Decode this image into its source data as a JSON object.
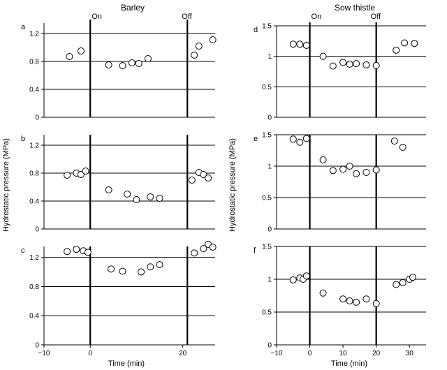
{
  "figure": {
    "column_titles": [
      "Barley",
      "Sow thistle"
    ],
    "ylabel": "Hydrostatic pressure (MPa)",
    "xlabel": "Time (min)",
    "marker_on": "On",
    "marker_off": "Off"
  },
  "chart_data": [
    {
      "type": "scatter",
      "panel": "a",
      "column": "Barley",
      "xlim": [
        -10,
        27
      ],
      "ylim": [
        0,
        1.35
      ],
      "yticks": [
        0,
        0.4,
        0.8,
        1.2
      ],
      "ytick_labels": [
        "0",
        "0.4",
        "0.8",
        "1.2"
      ],
      "hlines": [
        0.4,
        0.8,
        1.2
      ],
      "vlines": [
        0,
        21
      ],
      "marker_on_x": 0,
      "marker_off_x": 21,
      "points": [
        [
          -4.5,
          0.87
        ],
        [
          -2,
          0.95
        ],
        [
          4,
          0.75
        ],
        [
          7,
          0.74
        ],
        [
          9,
          0.78
        ],
        [
          10.5,
          0.77
        ],
        [
          12.5,
          0.84
        ],
        [
          22.5,
          0.89
        ],
        [
          23.5,
          1.02
        ],
        [
          26.5,
          1.11
        ]
      ],
      "xticks": [],
      "xtick_labels": []
    },
    {
      "type": "scatter",
      "panel": "b",
      "column": "Barley",
      "xlim": [
        -10,
        27
      ],
      "ylim": [
        0,
        1.35
      ],
      "yticks": [
        0,
        0.4,
        0.8,
        1.2
      ],
      "ytick_labels": [
        "0",
        "0.4",
        "0.8",
        "1.2"
      ],
      "hlines": [
        0.4,
        0.8,
        1.2
      ],
      "vlines": [
        0,
        21
      ],
      "points": [
        [
          -5,
          0.77
        ],
        [
          -3,
          0.8
        ],
        [
          -2,
          0.78
        ],
        [
          -1,
          0.83
        ],
        [
          4,
          0.56
        ],
        [
          8,
          0.5
        ],
        [
          10,
          0.42
        ],
        [
          13,
          0.46
        ],
        [
          15,
          0.44
        ],
        [
          22,
          0.7
        ],
        [
          23.5,
          0.81
        ],
        [
          24.5,
          0.78
        ],
        [
          25.5,
          0.73
        ]
      ],
      "xticks": [],
      "xtick_labels": []
    },
    {
      "type": "scatter",
      "panel": "c",
      "column": "Barley",
      "xlim": [
        -10,
        27
      ],
      "ylim": [
        0,
        1.35
      ],
      "yticks": [
        0,
        0.4,
        0.8,
        1.2
      ],
      "ytick_labels": [
        "0",
        "0.4",
        "0.8",
        "1.2"
      ],
      "hlines": [
        0.4,
        0.8,
        1.2
      ],
      "vlines": [
        0,
        21
      ],
      "points": [
        [
          -5,
          1.28
        ],
        [
          -3,
          1.31
        ],
        [
          -1.5,
          1.29
        ],
        [
          -0.5,
          1.27
        ],
        [
          4.5,
          1.04
        ],
        [
          7,
          1.01
        ],
        [
          11,
          1.0
        ],
        [
          13,
          1.07
        ],
        [
          15,
          1.1
        ],
        [
          22.5,
          1.26
        ],
        [
          24.5,
          1.32
        ],
        [
          25.5,
          1.38
        ],
        [
          26.5,
          1.34
        ]
      ],
      "xticks": [
        -10,
        0,
        20
      ],
      "xtick_labels": [
        "−10",
        "0",
        "20"
      ]
    },
    {
      "type": "scatter",
      "panel": "d",
      "column": "Sow thistle",
      "xlim": [
        -10,
        35
      ],
      "ylim": [
        0,
        1.5
      ],
      "yticks": [
        0,
        0.5,
        1,
        1.5
      ],
      "ytick_labels": [
        "0",
        "0.5",
        "1",
        "1.5"
      ],
      "hlines": [
        0.5,
        1,
        1.5
      ],
      "vlines": [
        0,
        20
      ],
      "marker_on_x": 0,
      "marker_off_x": 20,
      "points": [
        [
          -5,
          1.2
        ],
        [
          -3,
          1.2
        ],
        [
          -1,
          1.18
        ],
        [
          4,
          1.0
        ],
        [
          7,
          0.84
        ],
        [
          10,
          0.9
        ],
        [
          12,
          0.87
        ],
        [
          14,
          0.88
        ],
        [
          17,
          0.86
        ],
        [
          20,
          0.85
        ],
        [
          26,
          1.1
        ],
        [
          28.5,
          1.22
        ],
        [
          31.5,
          1.21
        ]
      ],
      "xticks": [],
      "xtick_labels": []
    },
    {
      "type": "scatter",
      "panel": "e",
      "column": "Sow thistle",
      "xlim": [
        -10,
        35
      ],
      "ylim": [
        0,
        1.5
      ],
      "yticks": [
        0,
        0.5,
        1,
        1.5
      ],
      "ytick_labels": [
        "0",
        "0.5",
        "1",
        "1.5"
      ],
      "hlines": [
        0.5,
        1,
        1.5
      ],
      "vlines": [
        0,
        20
      ],
      "points": [
        [
          -5,
          1.43
        ],
        [
          -3,
          1.38
        ],
        [
          -1,
          1.44
        ],
        [
          4,
          1.1
        ],
        [
          7,
          0.93
        ],
        [
          10,
          0.95
        ],
        [
          12,
          1.0
        ],
        [
          14,
          0.88
        ],
        [
          17,
          0.9
        ],
        [
          20,
          0.94
        ],
        [
          25.5,
          1.4
        ],
        [
          28,
          1.3
        ]
      ],
      "xticks": [],
      "xtick_labels": []
    },
    {
      "type": "scatter",
      "panel": "f",
      "column": "Sow thistle",
      "xlim": [
        -10,
        35
      ],
      "ylim": [
        0,
        1.5
      ],
      "yticks": [
        0,
        0.5,
        1,
        1.5
      ],
      "ytick_labels": [
        "0",
        "0.5",
        "1",
        "1.5"
      ],
      "hlines": [
        0.5,
        1,
        1.5
      ],
      "vlines": [
        0,
        20
      ],
      "points": [
        [
          -5,
          0.99
        ],
        [
          -3,
          1.02
        ],
        [
          -2,
          1.0
        ],
        [
          -1,
          1.05
        ],
        [
          4,
          0.79
        ],
        [
          10,
          0.7
        ],
        [
          12,
          0.67
        ],
        [
          14,
          0.65
        ],
        [
          17,
          0.7
        ],
        [
          20,
          0.63
        ],
        [
          26,
          0.92
        ],
        [
          28,
          0.95
        ],
        [
          30,
          1.0
        ],
        [
          31,
          1.03
        ]
      ],
      "xticks": [
        -10,
        0,
        10,
        20,
        30
      ],
      "xtick_labels": [
        "−10",
        "0",
        "10",
        "20",
        "30"
      ]
    }
  ]
}
